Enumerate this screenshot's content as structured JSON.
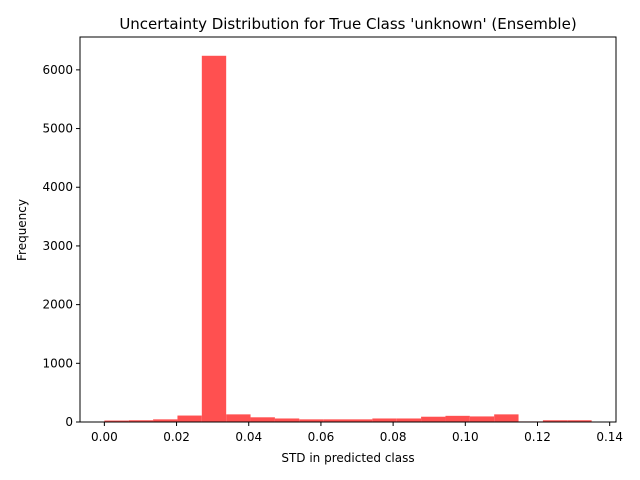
{
  "chart_data": {
    "type": "bar",
    "title": "Uncertainty Distribution for True Class 'unknown' (Ensemble)",
    "xlabel": "STD in predicted class",
    "ylabel": "Frequency",
    "xlim": [
      -0.00675,
      0.14175
    ],
    "ylim": [
      0,
      6560
    ],
    "xticks": [
      0.0,
      0.02,
      0.04,
      0.06,
      0.08,
      0.1,
      0.12,
      0.14
    ],
    "xtick_labels": [
      "0.00",
      "0.02",
      "0.04",
      "0.06",
      "0.08",
      "0.10",
      "0.12",
      "0.14"
    ],
    "yticks": [
      0,
      1000,
      2000,
      3000,
      4000,
      5000,
      6000
    ],
    "ytick_labels": [
      "0",
      "1000",
      "2000",
      "3000",
      "4000",
      "5000",
      "6000"
    ],
    "bar_color": "#ff5050",
    "bin_edges": [
      0.0,
      0.00675,
      0.0135,
      0.02025,
      0.027,
      0.03375,
      0.0405,
      0.04725,
      0.054,
      0.06075,
      0.0675,
      0.07425,
      0.081,
      0.08775,
      0.0945,
      0.10125,
      0.108,
      0.11475,
      0.1215,
      0.12825,
      0.135
    ],
    "values": [
      25,
      30,
      45,
      110,
      6240,
      130,
      80,
      60,
      45,
      45,
      45,
      60,
      60,
      90,
      105,
      95,
      130,
      10,
      30,
      30
    ]
  }
}
